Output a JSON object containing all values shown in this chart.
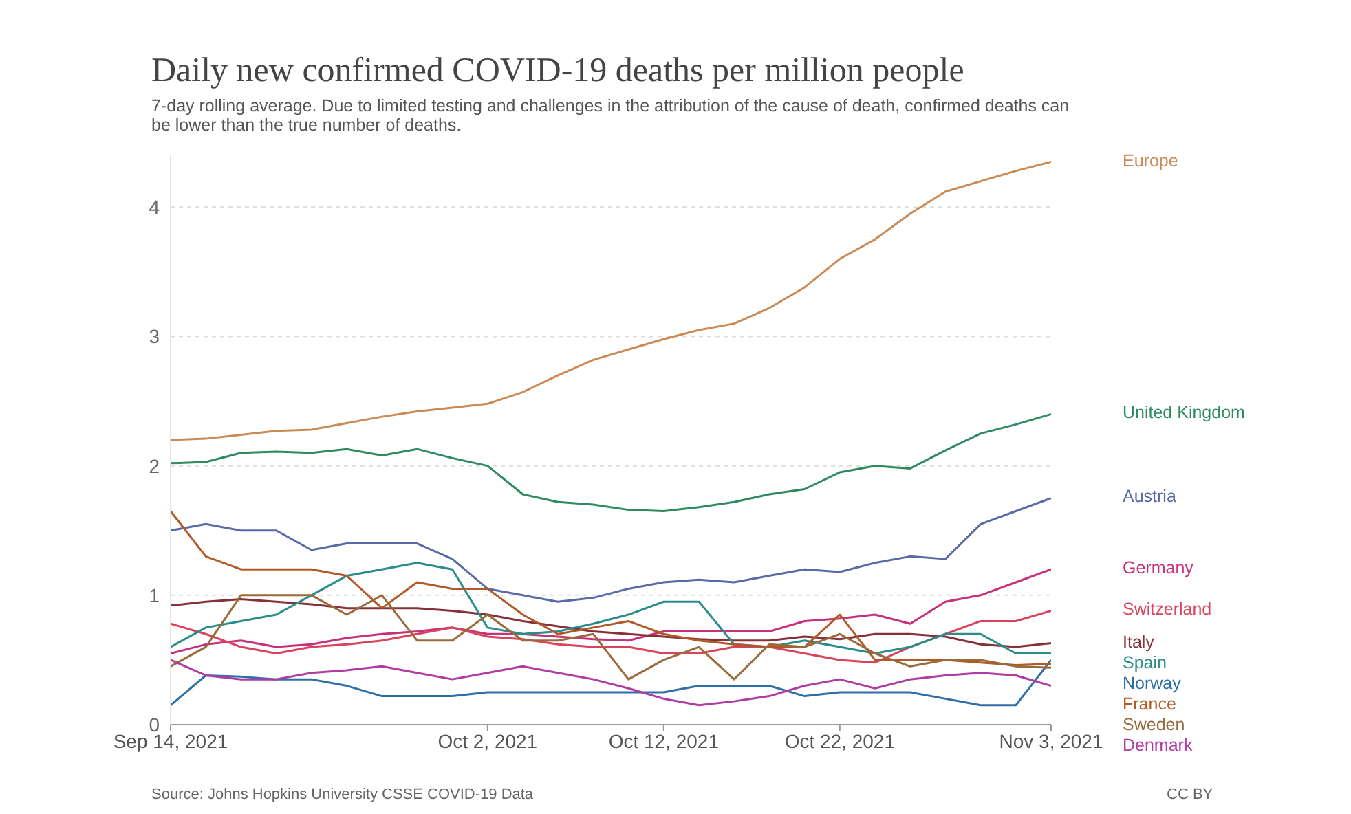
{
  "chart_data": {
    "type": "line",
    "title": "Daily new confirmed COVID-19 deaths per million people",
    "subtitle": "7-day rolling average. Due to limited testing and challenges in the attribution of the cause of death, confirmed deaths can be lower than the true number of deaths.",
    "annotations": [
      "Source: Johns Hopkins University CSSE COVID-19 Data",
      "CC BY"
    ],
    "x": [
      "2021-09-14",
      "2021-09-16",
      "2021-09-18",
      "2021-09-20",
      "2021-09-22",
      "2021-09-24",
      "2021-09-26",
      "2021-09-28",
      "2021-09-30",
      "2021-10-02",
      "2021-10-04",
      "2021-10-06",
      "2021-10-08",
      "2021-10-10",
      "2021-10-12",
      "2021-10-14",
      "2021-10-16",
      "2021-10-18",
      "2021-10-20",
      "2021-10-22",
      "2021-10-24",
      "2021-10-26",
      "2021-10-28",
      "2021-10-30",
      "2021-11-01",
      "2021-11-03"
    ],
    "xlim": [
      "2021-09-14",
      "2021-11-03"
    ],
    "xticks": [
      {
        "value": "2021-09-14",
        "label": "Sep 14, 2021"
      },
      {
        "value": "2021-10-02",
        "label": "Oct 2, 2021"
      },
      {
        "value": "2021-10-12",
        "label": "Oct 12, 2021"
      },
      {
        "value": "2021-10-22",
        "label": "Oct 22, 2021"
      },
      {
        "value": "2021-11-03",
        "label": "Nov 3, 2021"
      }
    ],
    "ylim": [
      0,
      4.4
    ],
    "yticks": [
      0,
      1,
      2,
      3,
      4
    ],
    "grid": "y",
    "legend": "right",
    "marker": "none",
    "line_style": "solid",
    "series": [
      {
        "name": "Europe",
        "color": "#c98a55",
        "values": [
          2.2,
          2.21,
          2.24,
          2.27,
          2.28,
          2.33,
          2.38,
          2.42,
          2.45,
          2.48,
          2.57,
          2.7,
          2.82,
          2.9,
          2.98,
          3.05,
          3.1,
          3.22,
          3.38,
          3.6,
          3.75,
          3.95,
          4.12,
          4.2,
          4.28,
          4.35
        ]
      },
      {
        "name": "United Kingdom",
        "color": "#2e8a63",
        "values": [
          2.02,
          2.03,
          2.1,
          2.11,
          2.1,
          2.13,
          2.08,
          2.13,
          2.06,
          2.0,
          1.78,
          1.72,
          1.7,
          1.66,
          1.65,
          1.68,
          1.72,
          1.78,
          1.82,
          1.95,
          2.0,
          1.98,
          2.12,
          2.25,
          2.32,
          2.4
        ]
      },
      {
        "name": "Austria",
        "color": "#5b6aa6",
        "values": [
          1.5,
          1.55,
          1.5,
          1.5,
          1.35,
          1.4,
          1.4,
          1.4,
          1.28,
          1.05,
          1.0,
          0.95,
          0.98,
          1.05,
          1.1,
          1.12,
          1.1,
          1.15,
          1.2,
          1.18,
          1.25,
          1.3,
          1.28,
          1.55,
          1.65,
          1.75
        ]
      },
      {
        "name": "Germany",
        "color": "#c8307a",
        "values": [
          0.55,
          0.62,
          0.65,
          0.6,
          0.62,
          0.67,
          0.7,
          0.72,
          0.75,
          0.7,
          0.7,
          0.68,
          0.66,
          0.65,
          0.72,
          0.72,
          0.72,
          0.72,
          0.8,
          0.82,
          0.85,
          0.78,
          0.95,
          1.0,
          1.1,
          1.2
        ]
      },
      {
        "name": "Switzerland",
        "color": "#d9435c",
        "values": [
          0.78,
          0.7,
          0.6,
          0.55,
          0.6,
          0.62,
          0.65,
          0.7,
          0.75,
          0.68,
          0.66,
          0.62,
          0.6,
          0.6,
          0.55,
          0.55,
          0.6,
          0.6,
          0.55,
          0.5,
          0.48,
          0.6,
          0.7,
          0.8,
          0.8,
          0.88
        ]
      },
      {
        "name": "Italy",
        "color": "#883039",
        "values": [
          0.92,
          0.95,
          0.97,
          0.95,
          0.93,
          0.9,
          0.9,
          0.9,
          0.88,
          0.85,
          0.8,
          0.76,
          0.72,
          0.7,
          0.68,
          0.66,
          0.65,
          0.65,
          0.68,
          0.66,
          0.7,
          0.7,
          0.68,
          0.62,
          0.6,
          0.63
        ]
      },
      {
        "name": "Spain",
        "color": "#2a8d8a",
        "values": [
          0.6,
          0.75,
          0.8,
          0.85,
          1.0,
          1.15,
          1.2,
          1.25,
          1.2,
          0.75,
          0.7,
          0.72,
          0.78,
          0.85,
          0.95,
          0.95,
          0.62,
          0.6,
          0.65,
          0.6,
          0.55,
          0.6,
          0.7,
          0.7,
          0.55,
          0.55
        ]
      },
      {
        "name": "Norway",
        "color": "#2f6fa8",
        "values": [
          0.15,
          0.38,
          0.37,
          0.35,
          0.35,
          0.3,
          0.22,
          0.22,
          0.22,
          0.25,
          0.25,
          0.25,
          0.25,
          0.25,
          0.25,
          0.3,
          0.3,
          0.3,
          0.22,
          0.25,
          0.25,
          0.25,
          0.2,
          0.15,
          0.15,
          0.5
        ]
      },
      {
        "name": "France",
        "color": "#b15a28",
        "values": [
          1.65,
          1.3,
          1.2,
          1.2,
          1.2,
          1.15,
          0.9,
          1.1,
          1.05,
          1.05,
          0.85,
          0.7,
          0.75,
          0.8,
          0.7,
          0.65,
          0.62,
          0.6,
          0.6,
          0.85,
          0.5,
          0.5,
          0.5,
          0.48,
          0.46,
          0.47
        ]
      },
      {
        "name": "Sweden",
        "color": "#9a6a3a",
        "values": [
          0.45,
          0.6,
          1.0,
          1.0,
          1.0,
          0.85,
          1.0,
          0.65,
          0.65,
          0.85,
          0.65,
          0.65,
          0.7,
          0.35,
          0.5,
          0.6,
          0.35,
          0.62,
          0.6,
          0.7,
          0.55,
          0.45,
          0.5,
          0.5,
          0.45,
          0.44
        ]
      },
      {
        "name": "Denmark",
        "color": "#b03ca3",
        "values": [
          0.5,
          0.38,
          0.35,
          0.35,
          0.4,
          0.42,
          0.45,
          0.4,
          0.35,
          0.4,
          0.45,
          0.4,
          0.35,
          0.28,
          0.2,
          0.15,
          0.18,
          0.22,
          0.3,
          0.35,
          0.28,
          0.35,
          0.38,
          0.4,
          0.38,
          0.3
        ]
      }
    ]
  }
}
